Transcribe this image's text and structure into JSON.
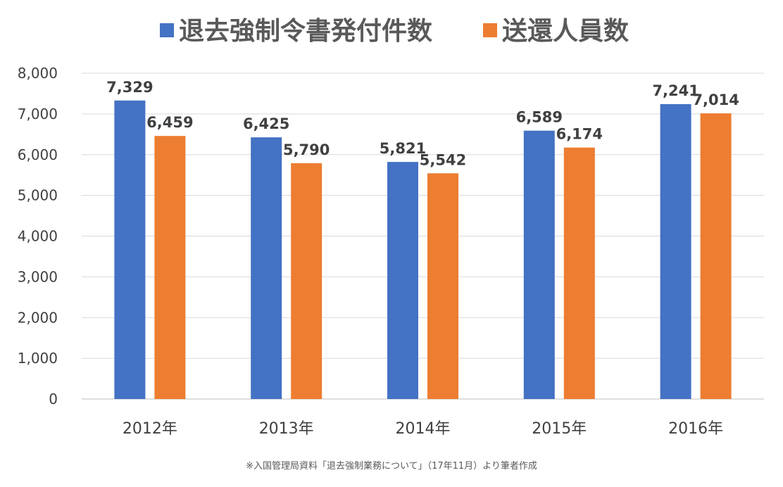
{
  "chart_data": {
    "type": "bar",
    "categories": [
      "2012年",
      "2013年",
      "2014年",
      "2015年",
      "2016年"
    ],
    "series": [
      {
        "name": "退去強制令書発付件数",
        "values": [
          7329,
          6425,
          5821,
          6589,
          7241
        ],
        "color": "#4472C4"
      },
      {
        "name": "送還人員数",
        "values": [
          6459,
          5790,
          5542,
          6174,
          7014
        ],
        "color": "#ED7D31"
      }
    ],
    "data_labels": [
      [
        "7,329",
        "6,425",
        "5,821",
        "6,589",
        "7,241"
      ],
      [
        "6,459",
        "5,790",
        "5,542",
        "6,174",
        "7,014"
      ]
    ],
    "yticks": [
      "0",
      "1,000",
      "2,000",
      "3,000",
      "4,000",
      "5,000",
      "6,000",
      "7,000",
      "8,000"
    ],
    "ylim": [
      0,
      8000
    ],
    "grid": true,
    "legend_position": "top",
    "title": "",
    "xlabel": "",
    "ylabel": ""
  },
  "footnote": "※入国管理局資料「退去強制業務について」（17年11月）より筆者作成"
}
